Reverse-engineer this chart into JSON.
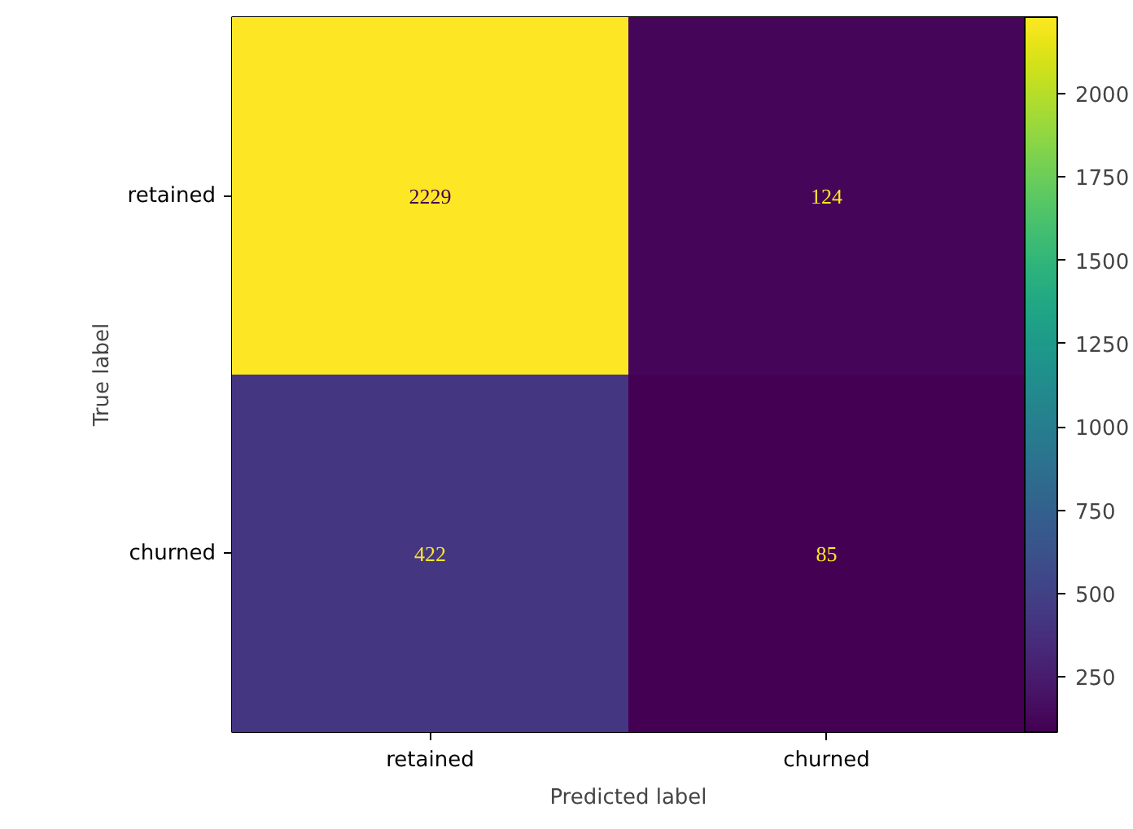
{
  "chart_data": {
    "type": "heatmap",
    "xlabel": "Predicted label",
    "ylabel": "True label",
    "categories": [
      "retained",
      "churned"
    ],
    "y_categories": [
      "retained",
      "churned"
    ],
    "cells": [
      [
        2229,
        124
      ],
      [
        422,
        85
      ]
    ],
    "clim": [
      85,
      2229
    ],
    "cticks": [
      250,
      500,
      750,
      1000,
      1250,
      1500,
      1750,
      2000
    ],
    "data_labels": true
  }
}
